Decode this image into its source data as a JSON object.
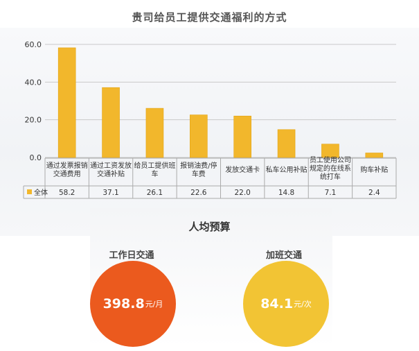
{
  "chart_data": {
    "type": "bar",
    "title": "贵司给员工提供交通福利的方式",
    "categories": [
      [
        "通过发票报销",
        "交通费用"
      ],
      [
        "通过工资发放",
        "交通补贴"
      ],
      [
        "给员工提供班",
        "车"
      ],
      [
        "报销油费/停",
        "车费"
      ],
      [
        "发放交通卡"
      ],
      [
        "私车公用补贴"
      ],
      [
        "员工使用公司",
        "规定的在线系",
        "统打车"
      ],
      [
        "购车补贴"
      ]
    ],
    "series": [
      {
        "name": "全体",
        "values": [
          58.2,
          37.1,
          26.1,
          22.6,
          22.0,
          14.8,
          7.1,
          2.4
        ],
        "display": [
          "58.2",
          "37.1",
          "26.1",
          "22.6",
          "22.0",
          "14.8",
          "7.1",
          "2.4"
        ]
      }
    ],
    "yticks": [
      "0.0",
      "20.0",
      "40.0",
      "60.0"
    ],
    "ylim": [
      0,
      60
    ],
    "grid": true,
    "legend_in_table": true
  },
  "colors": {
    "bar": "#f2b72c",
    "bar_edge": "#e3a414",
    "grid": "#c9c9c9",
    "circle_workday": "#eb5a1e",
    "circle_overtime": "#f2c434"
  },
  "budget": {
    "title": "人均预算",
    "workday": {
      "label": "工作日交通",
      "value": "398.8",
      "unit": "元/月"
    },
    "overtime": {
      "label": "加班交通",
      "value": "84.1",
      "unit": "元/次"
    }
  }
}
